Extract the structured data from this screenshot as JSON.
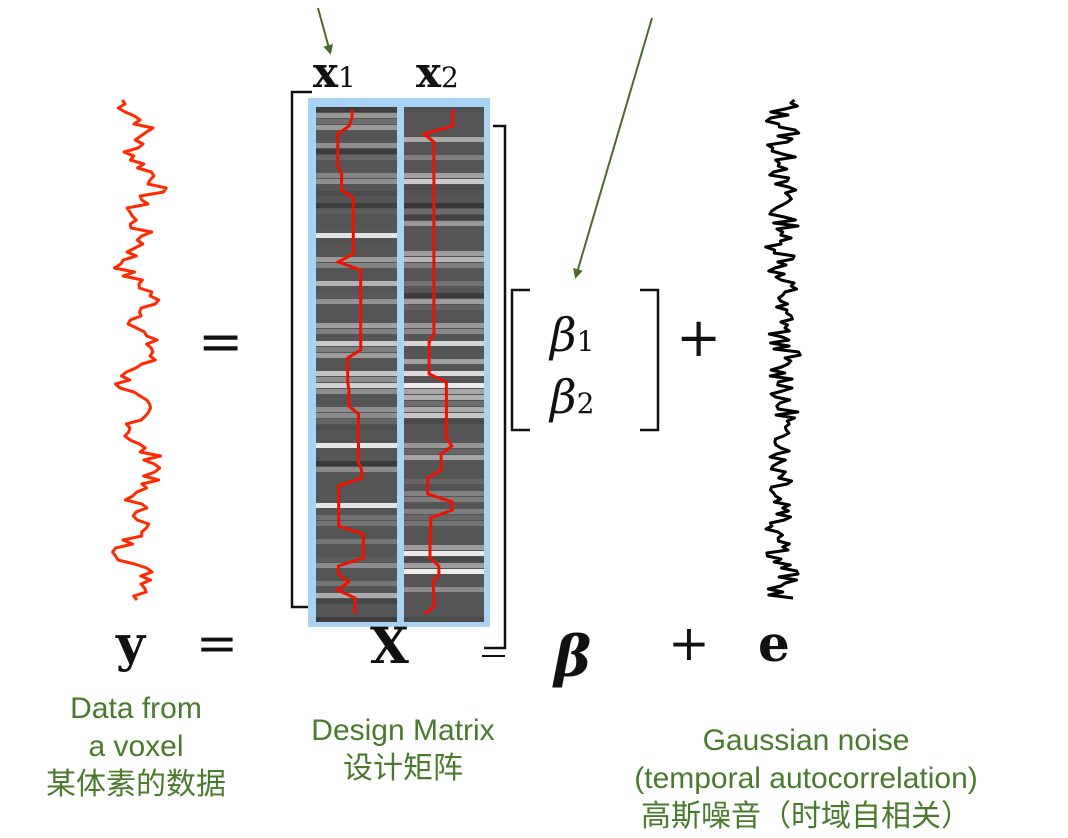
{
  "colors": {
    "data_trace": "#ff2a00",
    "noise_trace": "#000000",
    "caption": "#4a7a2c",
    "arrow": "#4a6b2a",
    "matrix_border": "#a9d3f5",
    "regressor_trace": "#ee1100"
  },
  "labels": {
    "x1": "x",
    "x1_sub": "1",
    "x2": "x",
    "x2_sub": "2",
    "beta1": "β",
    "beta1_sub": "1",
    "beta2": "β",
    "beta2_sub": "2",
    "equals_top": "=",
    "plus_top": "+",
    "y": "y",
    "equals_bottom": "=",
    "X": "X",
    "beta_bold": "β",
    "plus_bottom": "+",
    "e": "e"
  },
  "captions": {
    "data": [
      "Data from",
      "a voxel",
      "某体素的数据"
    ],
    "design": [
      "Design Matrix",
      "设计矩阵"
    ],
    "noise": [
      "Gaussian noise",
      "(temporal autocorrelation)",
      "高斯噪音（时域自相关）"
    ]
  }
}
